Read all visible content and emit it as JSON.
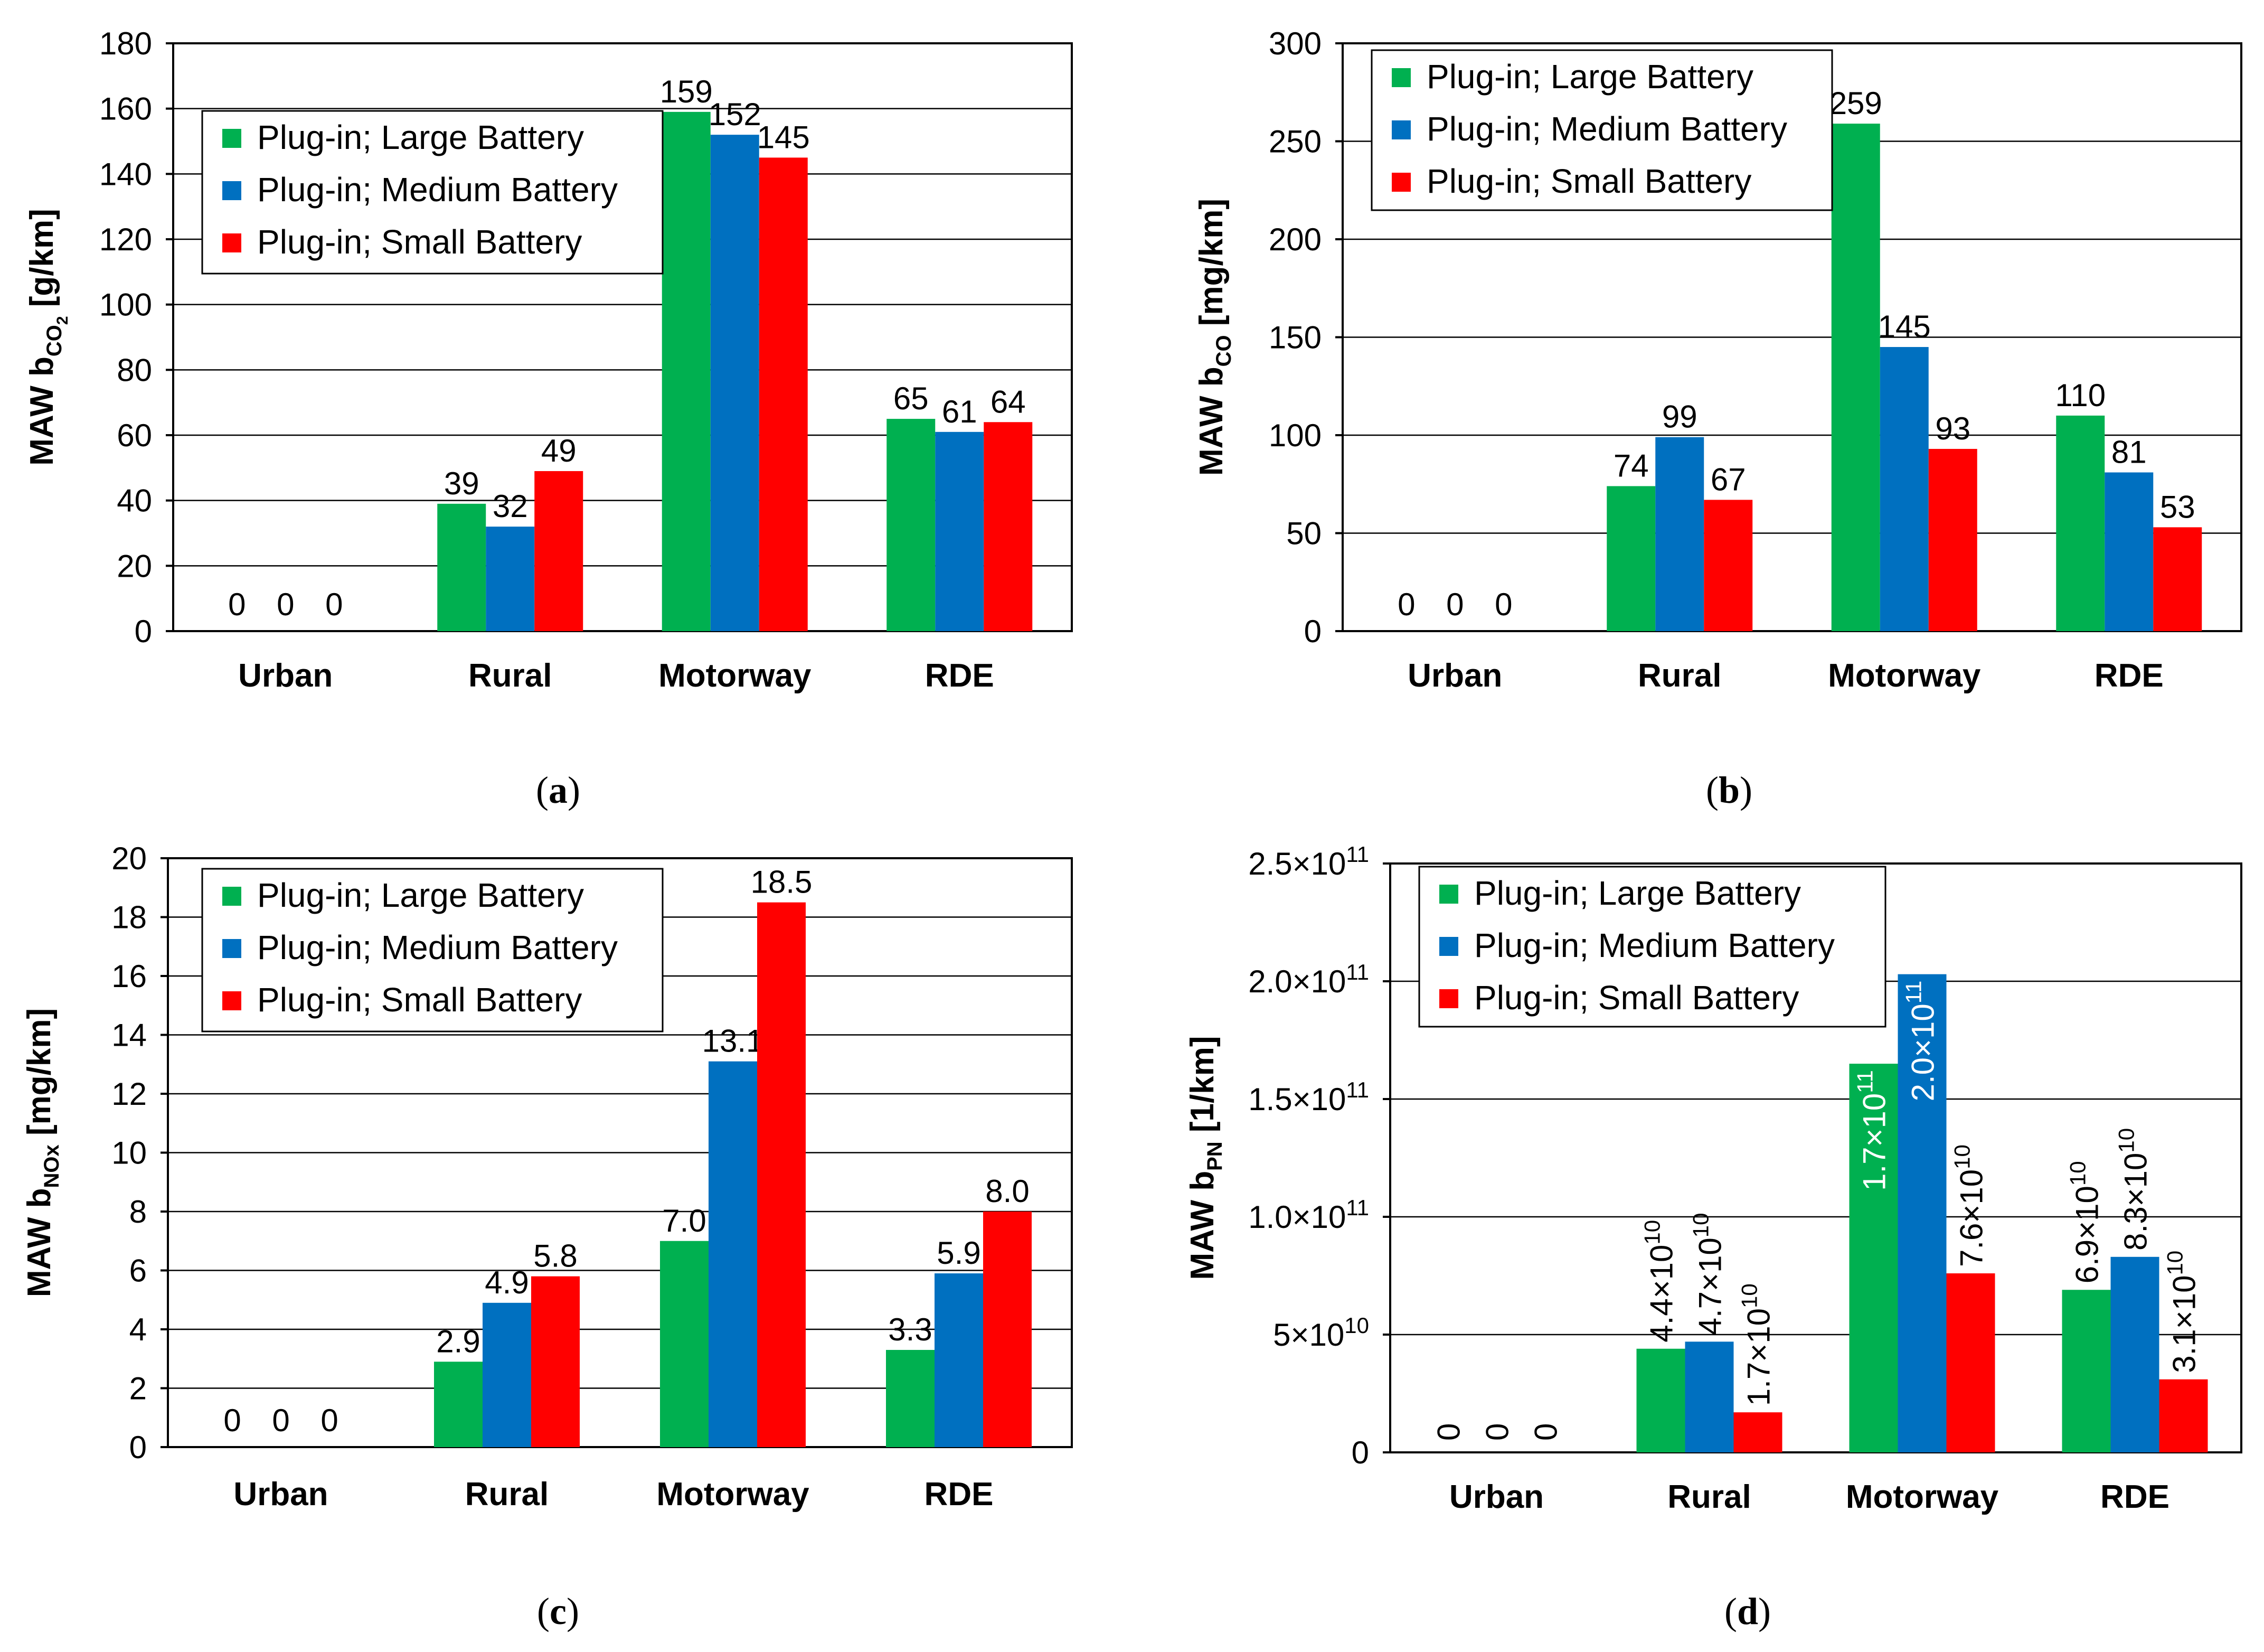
{
  "series": [
    {
      "name": "Plug-in; Large Battery",
      "color": "#00b050"
    },
    {
      "name": "Plug-in; Medium Battery",
      "color": "#0070c0"
    },
    {
      "name": "Plug-in; Small Battery",
      "color": "#ff0000"
    }
  ],
  "chart_data": [
    {
      "id": "a",
      "type": "bar",
      "caption": "a",
      "categories": [
        "Urban",
        "Rural",
        "Motorway",
        "RDE"
      ],
      "ylabel_main": "MAW b",
      "ylabel_sub": "CO",
      "ylabel_subsub": "2",
      "ylabel_unit": " [g/km]",
      "ylim": [
        0,
        180
      ],
      "yticks": [
        0,
        20,
        40,
        60,
        80,
        100,
        120,
        140,
        160,
        180
      ],
      "ytick_labels": [
        "0",
        "20",
        "40",
        "60",
        "80",
        "100",
        "120",
        "140",
        "160",
        "180"
      ],
      "series": [
        {
          "name": "Plug-in; Large Battery",
          "values": [
            0,
            39,
            159,
            65
          ],
          "labels": [
            "0",
            "39",
            "159",
            "65"
          ]
        },
        {
          "name": "Plug-in; Medium Battery",
          "values": [
            0,
            32,
            152,
            61
          ],
          "labels": [
            "0",
            "32",
            "152",
            "61"
          ]
        },
        {
          "name": "Plug-in; Small Battery",
          "values": [
            0,
            49,
            145,
            64
          ],
          "labels": [
            "0",
            "49",
            "145",
            "64"
          ]
        }
      ]
    },
    {
      "id": "b",
      "type": "bar",
      "caption": "b",
      "categories": [
        "Urban",
        "Rural",
        "Motorway",
        "RDE"
      ],
      "ylabel_main": "MAW b",
      "ylabel_sub": "CO",
      "ylabel_subsub": "",
      "ylabel_unit": " [mg/km]",
      "ylim": [
        0,
        300
      ],
      "yticks": [
        0,
        50,
        100,
        150,
        200,
        250,
        300
      ],
      "ytick_labels": [
        "0",
        "50",
        "100",
        "150",
        "200",
        "250",
        "300"
      ],
      "series": [
        {
          "name": "Plug-in; Large Battery",
          "values": [
            0,
            74,
            259,
            110
          ],
          "labels": [
            "0",
            "74",
            "259",
            "110"
          ]
        },
        {
          "name": "Plug-in; Medium Battery",
          "values": [
            0,
            99,
            145,
            81
          ],
          "labels": [
            "0",
            "99",
            "145",
            "81"
          ]
        },
        {
          "name": "Plug-in; Small Battery",
          "values": [
            0,
            67,
            93,
            53
          ],
          "labels": [
            "0",
            "67",
            "93",
            "53"
          ]
        }
      ]
    },
    {
      "id": "c",
      "type": "bar",
      "caption": "c",
      "categories": [
        "Urban",
        "Rural",
        "Motorway",
        "RDE"
      ],
      "ylabel_main": "MAW b",
      "ylabel_sub": "NOx",
      "ylabel_subsub": "",
      "ylabel_unit": " [mg/km]",
      "ylim": [
        0,
        20
      ],
      "yticks": [
        0,
        2,
        4,
        6,
        8,
        10,
        12,
        14,
        16,
        18,
        20
      ],
      "ytick_labels": [
        "0",
        "2",
        "4",
        "6",
        "8",
        "10",
        "12",
        "14",
        "16",
        "18",
        "20"
      ],
      "series": [
        {
          "name": "Plug-in; Large Battery",
          "values": [
            0,
            2.9,
            7.0,
            3.3
          ],
          "labels": [
            "0",
            "2.9",
            "7.0",
            "3.3"
          ]
        },
        {
          "name": "Plug-in; Medium Battery",
          "values": [
            0,
            4.9,
            13.1,
            5.9
          ],
          "labels": [
            "0",
            "4.9",
            "13.1",
            "5.9"
          ]
        },
        {
          "name": "Plug-in; Small Battery",
          "values": [
            0,
            5.8,
            18.5,
            8.0
          ],
          "labels": [
            "0",
            "5.8",
            "18.5",
            "8.0"
          ]
        }
      ]
    },
    {
      "id": "d",
      "type": "bar",
      "caption": "d",
      "categories": [
        "Urban",
        "Rural",
        "Motorway",
        "RDE"
      ],
      "ylabel_main": "MAW b",
      "ylabel_sub": "PN",
      "ylabel_subsub": "",
      "ylabel_unit": " [1/km]",
      "ylim": [
        0,
        250000000000
      ],
      "yticks": [
        0,
        50000000000,
        100000000000,
        150000000000,
        200000000000,
        250000000000
      ],
      "ytick_labels": [
        {
          "base": "0",
          "exp": ""
        },
        {
          "base": "5×10",
          "exp": "10"
        },
        {
          "base": "1.0×10",
          "exp": "11"
        },
        {
          "base": "1.5×10",
          "exp": "11"
        },
        {
          "base": "2.0×10",
          "exp": "11"
        },
        {
          "base": "2.5×10",
          "exp": "11"
        }
      ],
      "series": [
        {
          "name": "Plug-in; Large Battery",
          "values": [
            0,
            44000000000,
            165000000000,
            69000000000
          ],
          "labels": [
            {
              "base": "0",
              "exp": ""
            },
            {
              "base": "4.4×10",
              "exp": "10"
            },
            {
              "base": "1.7×10",
              "exp": "11"
            },
            {
              "base": "6.9×10",
              "exp": "10"
            }
          ]
        },
        {
          "name": "Plug-in; Medium Battery",
          "values": [
            0,
            47000000000,
            203000000000,
            83000000000
          ],
          "labels": [
            {
              "base": "0",
              "exp": ""
            },
            {
              "base": "4.7×10",
              "exp": "10"
            },
            {
              "base": "2.0×10",
              "exp": "11"
            },
            {
              "base": "8.3×10",
              "exp": "10"
            }
          ]
        },
        {
          "name": "Plug-in; Small Battery",
          "values": [
            0,
            17000000000,
            76000000000,
            31000000000
          ],
          "labels": [
            {
              "base": "0",
              "exp": ""
            },
            {
              "base": "1.7×10",
              "exp": "10"
            },
            {
              "base": "7.6×10",
              "exp": "10"
            },
            {
              "base": "3.1×10",
              "exp": "10"
            }
          ]
        }
      ]
    }
  ]
}
